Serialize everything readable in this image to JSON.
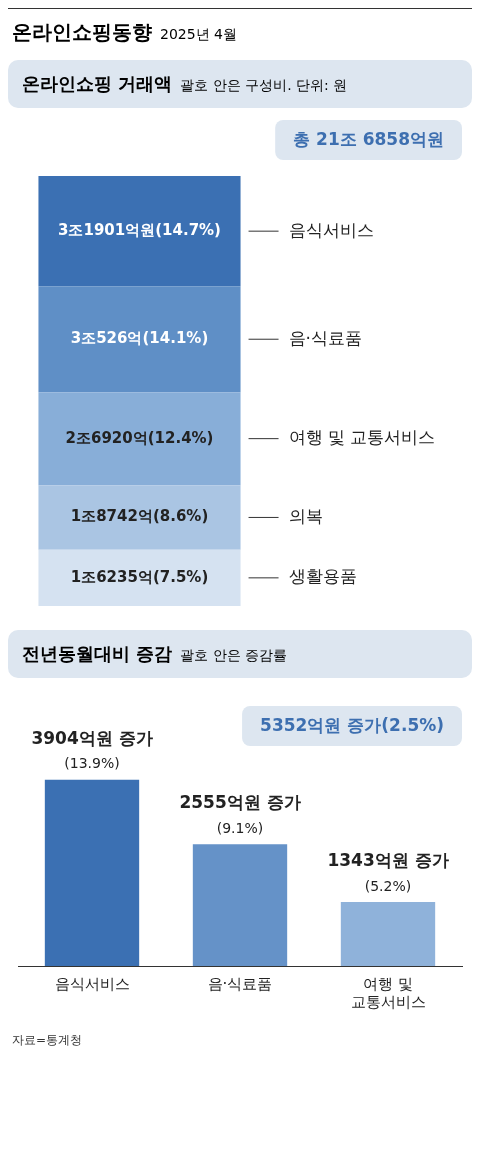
{
  "chart_data": [
    {
      "type": "other",
      "title": "온라인쇼핑동향",
      "subtitle": "2025년 4월"
    },
    {
      "type": "bar",
      "title": "온라인쇼핑 거래액",
      "subtitle": "괄호 안은 구성비. 단위: 원",
      "categories": [
        null
      ],
      "stacked": true,
      "annotations": [
        "총 21조 6858억원"
      ],
      "series": [
        {
          "name": "생활용품",
          "color": "#d5e2f1",
          "values": [
            7.5
          ],
          "value_labels": [
            "1조6235억(7.5%)"
          ]
        },
        {
          "name": "의복",
          "color": "#aac5e3",
          "values": [
            8.6
          ],
          "value_labels": [
            "1조8742억(8.6%)"
          ]
        },
        {
          "name": "여행 및 교통서비스",
          "color": "#88aed8",
          "values": [
            12.4
          ],
          "value_labels": [
            "2조6920억(12.4%)"
          ]
        },
        {
          "name": "음·식료품",
          "color": "#5f8fc6",
          "values": [
            14.1
          ],
          "value_labels": [
            "3조526억(14.1%)"
          ]
        },
        {
          "name": "음식서비스",
          "color": "#3b70b3",
          "values": [
            14.7
          ],
          "value_labels": [
            "3조1901억원(14.7%)"
          ]
        }
      ]
    },
    {
      "type": "bar",
      "title": "전년동월대비 증감",
      "subtitle": "괄호 안은 증감률",
      "categories": [
        "음식서비스",
        "음·식료품",
        "여행 및 교통서비스"
      ],
      "values": [
        3904,
        2555,
        1343
      ],
      "colors": [
        "#3b70b3",
        "#6592c8",
        "#8fb2da"
      ],
      "value_labels": [
        "3904억원 증가\n(13.9%)",
        "2555억원 증가\n(9.1%)",
        "1343억원 증가\n(5.2%)"
      ],
      "annotations": [
        "5352억원 증가(2.5%)",
        "자료=통계청"
      ]
    }
  ]
}
